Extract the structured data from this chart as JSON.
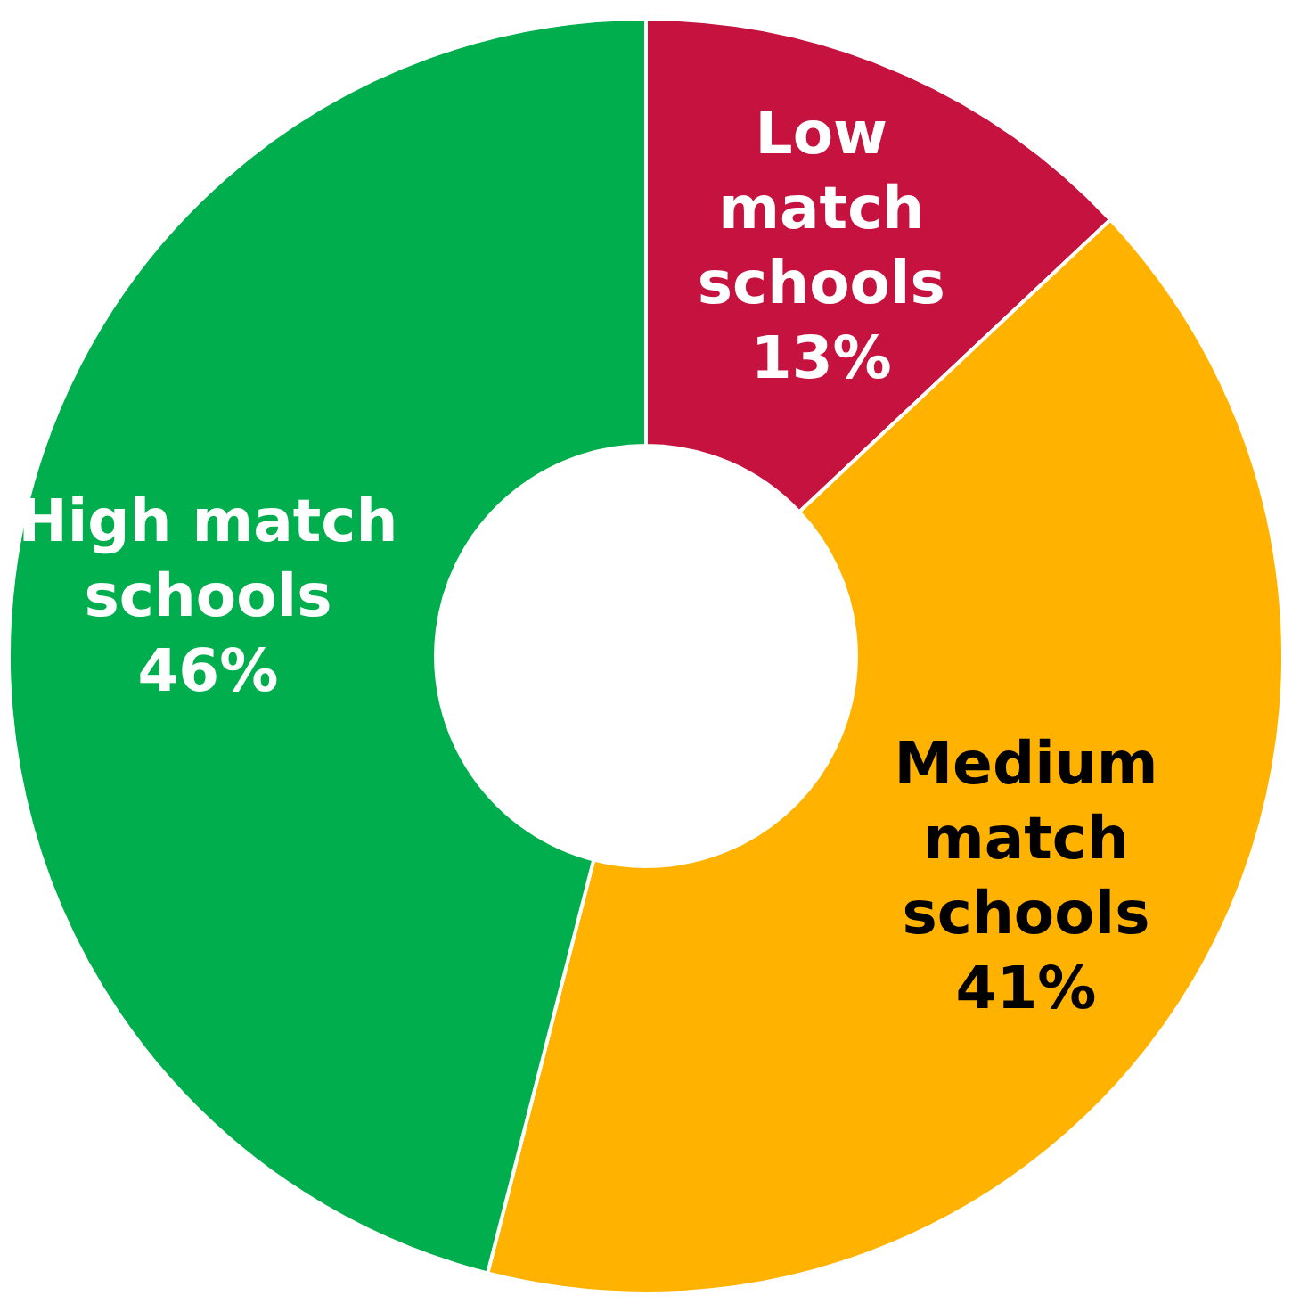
{
  "chart_data": {
    "type": "donut",
    "categories": [
      "Low match schools",
      "Medium match schools",
      "High match schools"
    ],
    "values": [
      13,
      41,
      46
    ],
    "colors": [
      "#c5123e",
      "#ffb300",
      "#00ae4d"
    ],
    "value_labels": [
      "13%",
      "41%",
      "46%"
    ],
    "legend": false
  }
}
